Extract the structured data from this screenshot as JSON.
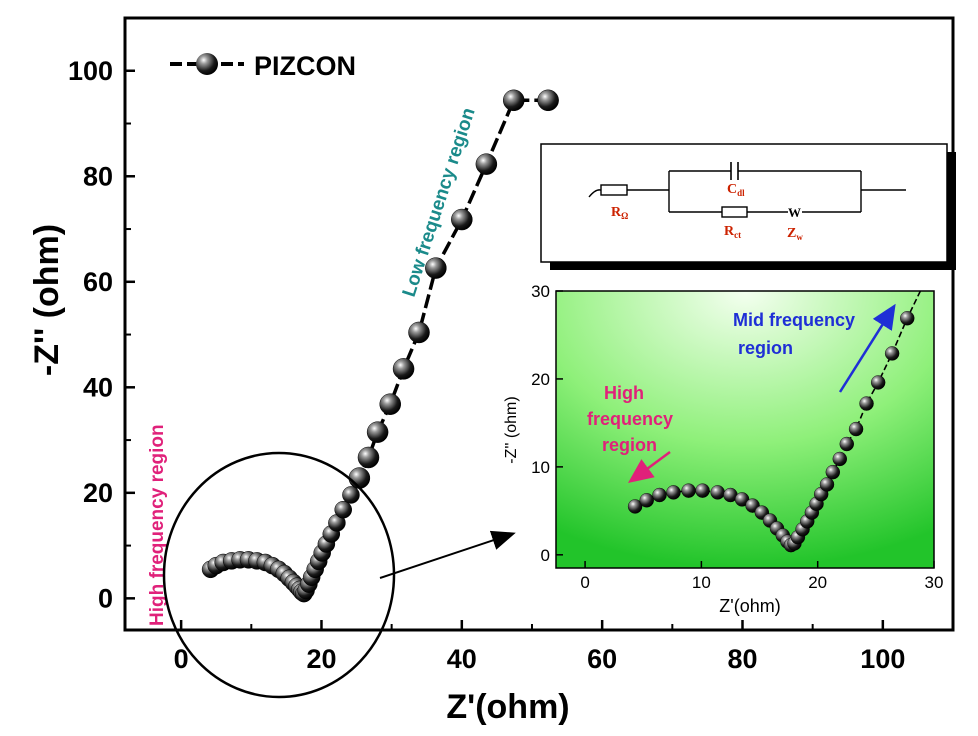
{
  "chart_data": [
    {
      "type": "scatter",
      "title": "",
      "xlabel": "Z'(ohm)",
      "ylabel": "-Z'' (ohm)",
      "xlim": [
        -8,
        110
      ],
      "ylim": [
        -6,
        110
      ],
      "xticks": [
        0,
        20,
        40,
        60,
        80,
        100
      ],
      "yticks": [
        0,
        20,
        40,
        60,
        80,
        100
      ],
      "grid": false,
      "legend": {
        "position": "top-left",
        "entries": [
          "PIZCON"
        ]
      },
      "series": [
        {
          "name": "PIZCON",
          "x": [
            4.2,
            5.0,
            6.0,
            7.2,
            8.4,
            9.6,
            10.8,
            12.0,
            13.0,
            13.9,
            14.7,
            15.4,
            16.0,
            16.5,
            16.9,
            17.2,
            17.5,
            17.8,
            18.2,
            18.6,
            19.1,
            19.6,
            20.1,
            20.7,
            21.4,
            22.2,
            23.1,
            24.2,
            25.4,
            26.7,
            28.0,
            29.8,
            31.7,
            33.9,
            36.3,
            40.0,
            43.5,
            47.4,
            52.3
          ],
          "y": [
            5.5,
            6.2,
            6.8,
            7.1,
            7.3,
            7.3,
            7.1,
            6.8,
            6.2,
            5.5,
            4.7,
            3.8,
            3.0,
            2.3,
            1.7,
            1.2,
            0.9,
            1.5,
            2.7,
            4.0,
            5.5,
            7.0,
            8.6,
            10.3,
            12.2,
            14.3,
            16.8,
            19.6,
            22.8,
            26.7,
            31.5,
            36.8,
            43.5,
            50.4,
            62.6,
            71.8,
            82.3,
            94.4,
            94.4
          ]
        }
      ],
      "annotations": [
        "High frequency region",
        "Low frequency region"
      ]
    },
    {
      "type": "scatter",
      "title": "",
      "xlabel": "Z'(ohm)",
      "ylabel": "-Z'' (ohm)",
      "xlim": [
        -2.5,
        30
      ],
      "ylim": [
        -1.5,
        30
      ],
      "xticks": [
        0,
        10,
        20,
        30
      ],
      "yticks": [
        0,
        10,
        20,
        30
      ],
      "grid": false,
      "series": [
        {
          "name": "PIZCON",
          "x": [
            4.3,
            5.3,
            6.4,
            7.6,
            8.9,
            10.1,
            11.4,
            12.5,
            13.5,
            14.4,
            15.2,
            15.9,
            16.5,
            17.0,
            17.4,
            17.7,
            18.0,
            18.3,
            18.7,
            19.1,
            19.5,
            19.9,
            20.3,
            20.8,
            21.3,
            21.9,
            22.5,
            23.3,
            24.2,
            25.2,
            26.4,
            27.7
          ],
          "y": [
            5.5,
            6.2,
            6.8,
            7.1,
            7.3,
            7.3,
            7.1,
            6.8,
            6.3,
            5.6,
            4.8,
            3.9,
            3.0,
            2.2,
            1.5,
            1.1,
            1.3,
            2.0,
            2.9,
            3.8,
            4.8,
            5.8,
            6.9,
            8.0,
            9.4,
            10.9,
            12.6,
            14.3,
            17.2,
            19.6,
            22.9,
            26.9
          ]
        }
      ],
      "annotations": [
        "High frequency region",
        "Mid frequency region"
      ]
    }
  ],
  "legend_label": "PIZCON",
  "annotations": {
    "high_freq_main": "High frequency region",
    "low_freq_main": "Low frequency region",
    "high_freq_inset_l1": "High",
    "high_freq_inset_l2": "frequency",
    "high_freq_inset_l3": "region",
    "mid_freq_inset_l1": "Mid frequency",
    "mid_freq_inset_l2": "region"
  },
  "circuit": {
    "r_omega": "R",
    "r_omega_sub": "Ω",
    "cdl": "C",
    "cdl_sub": "dl",
    "rct": "R",
    "rct_sub": "ct",
    "zw": "Z",
    "zw_sub": "w",
    "w_glyph": "W"
  },
  "colors": {
    "annotation_pink": "#e0217a",
    "annotation_teal": "#1a8a8a",
    "annotation_blue": "#1f2fd6",
    "circuit_red": "#cc2200",
    "inset_green_light": "#e8ffe0",
    "inset_green_dark": "#22c42a"
  }
}
